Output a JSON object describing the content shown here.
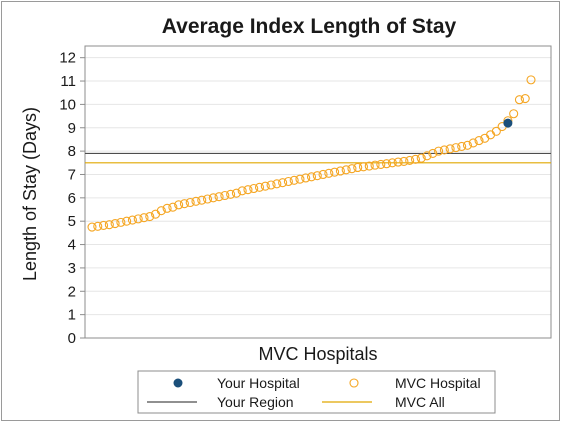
{
  "chart_data": {
    "type": "scatter",
    "title": "Average Index Length of Stay",
    "xlabel": "MVC Hospitals",
    "ylabel": "Length of Stay (Days)",
    "ylim": [
      0,
      12.5
    ],
    "yticks": [
      0,
      1,
      2,
      3,
      4,
      5,
      6,
      7,
      8,
      9,
      10,
      11,
      12
    ],
    "grid": true,
    "legend_position": "bottom",
    "series": [
      {
        "name": "MVC Hospital",
        "kind": "points",
        "marker": "open-circle",
        "color": "#f5a623",
        "values": [
          4.75,
          4.78,
          4.82,
          4.85,
          4.9,
          4.95,
          5.0,
          5.05,
          5.1,
          5.15,
          5.2,
          5.3,
          5.45,
          5.55,
          5.6,
          5.7,
          5.75,
          5.8,
          5.85,
          5.9,
          5.95,
          6.0,
          6.05,
          6.1,
          6.15,
          6.2,
          6.3,
          6.35,
          6.4,
          6.45,
          6.5,
          6.55,
          6.6,
          6.65,
          6.7,
          6.75,
          6.8,
          6.85,
          6.9,
          6.95,
          7.0,
          7.05,
          7.1,
          7.15,
          7.2,
          7.25,
          7.3,
          7.33,
          7.36,
          7.4,
          7.43,
          7.46,
          7.5,
          7.53,
          7.56,
          7.6,
          7.65,
          7.7,
          7.8,
          7.9,
          8.0,
          8.05,
          8.1,
          8.15,
          8.2,
          8.25,
          8.35,
          8.45,
          8.55,
          8.7,
          8.85,
          9.05,
          9.3,
          9.6,
          10.2,
          10.25,
          11.05
        ]
      },
      {
        "name": "Your Hospital",
        "kind": "point",
        "marker": "filled-circle",
        "color": "#1b4f7a",
        "index": 72,
        "value": 9.2
      },
      {
        "name": "Your Region",
        "kind": "hline",
        "color": "#4d4d4d",
        "value": 7.9
      },
      {
        "name": "MVC All",
        "kind": "hline",
        "color": "#e0a800",
        "value": 7.5
      }
    ],
    "legend": [
      {
        "label": "Your Hospital",
        "symbol": "filled-circle",
        "color": "#1b4f7a"
      },
      {
        "label": "MVC Hospital",
        "symbol": "open-circle",
        "color": "#f5a623"
      },
      {
        "label": "Your Region",
        "symbol": "line",
        "color": "#4d4d4d"
      },
      {
        "label": "MVC All",
        "symbol": "line",
        "color": "#e0a800"
      }
    ]
  }
}
